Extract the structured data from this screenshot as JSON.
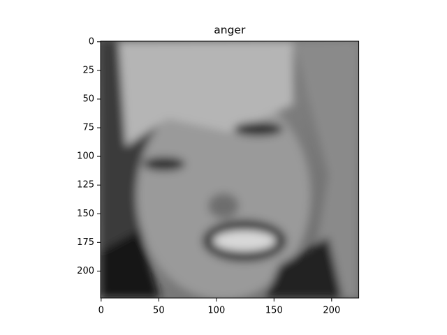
{
  "chart_data": {
    "type": "image",
    "title": "anger",
    "xlim": [
      -0.5,
      223.5
    ],
    "ylim": [
      223.5,
      -0.5
    ],
    "xticks": [
      0,
      50,
      100,
      150,
      200
    ],
    "yticks": [
      0,
      25,
      50,
      75,
      100,
      125,
      150,
      175,
      200
    ]
  }
}
